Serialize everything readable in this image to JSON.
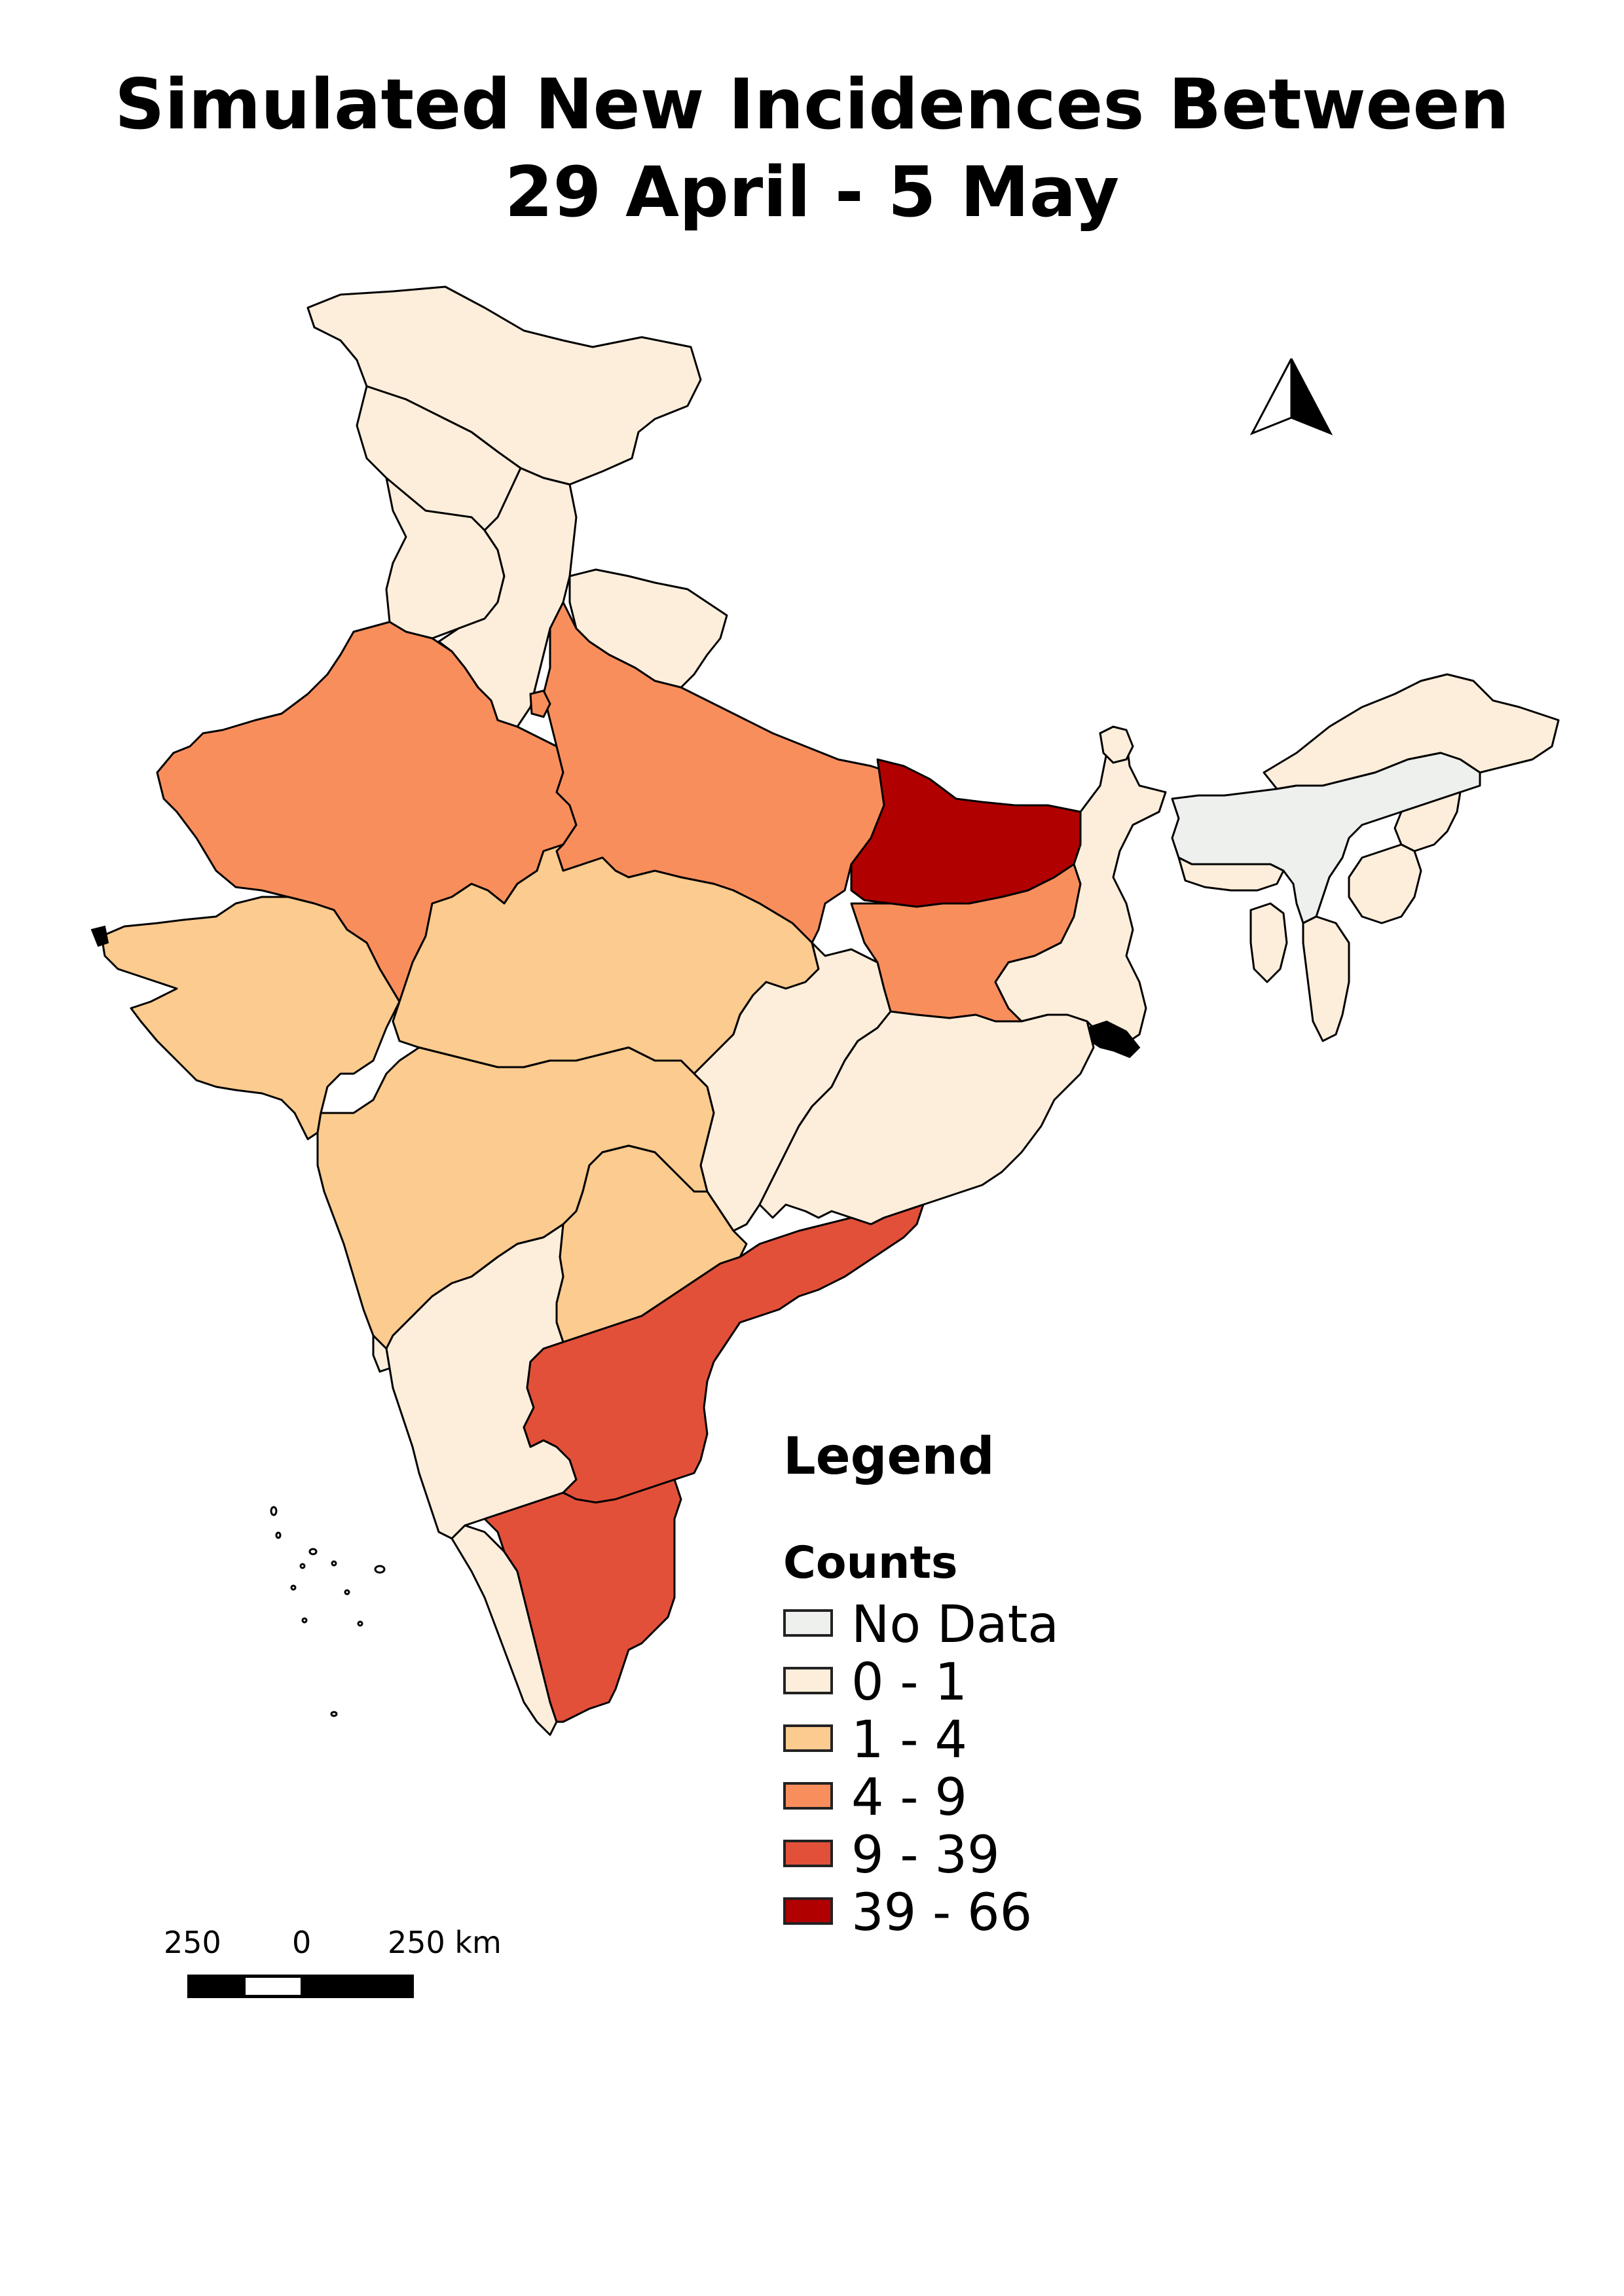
{
  "title": {
    "line1": "Simulated New Incidences Between",
    "line2": "29 April - 5 May"
  },
  "legend": {
    "heading": "Legend",
    "subheading": "Counts",
    "classes": [
      {
        "label": "No Data",
        "color": "#eef0ee"
      },
      {
        "label": " 0 - 1",
        "color": "#fdeedb"
      },
      {
        "label": " 1 - 4",
        "color": "#fbcb8f"
      },
      {
        "label": " 4 - 9",
        "color": "#f98e5d"
      },
      {
        "label": " 9 - 39",
        "color": "#e2503a"
      },
      {
        "label": "39 - 66",
        "color": "#b10000"
      }
    ]
  },
  "regions": [
    {
      "name": "Jammu and Kashmir",
      "class": "0 - 1",
      "color": "#fdeedb"
    },
    {
      "name": "Himachal Pradesh",
      "class": "0 - 1",
      "color": "#fdeedb"
    },
    {
      "name": "Punjab",
      "class": "0 - 1",
      "color": "#fdeedb"
    },
    {
      "name": "Haryana",
      "class": "0 - 1",
      "color": "#fdeedb"
    },
    {
      "name": "Uttarakhand",
      "class": "0 - 1",
      "color": "#fdeedb"
    },
    {
      "name": "Delhi",
      "class": "4 - 9",
      "color": "#f98e5d"
    },
    {
      "name": "Rajasthan",
      "class": "4 - 9",
      "color": "#f98e5d"
    },
    {
      "name": "Uttar Pradesh",
      "class": "4 - 9",
      "color": "#f98e5d"
    },
    {
      "name": "Bihar",
      "class": "39 - 66",
      "color": "#b10000"
    },
    {
      "name": "Gujarat",
      "class": "1 - 4",
      "color": "#fbcb8f"
    },
    {
      "name": "Madhya Pradesh",
      "class": "1 - 4",
      "color": "#fbcb8f"
    },
    {
      "name": "Jharkhand",
      "class": "4 - 9",
      "color": "#f98e5d"
    },
    {
      "name": "West Bengal",
      "class": "0 - 1",
      "color": "#fdeedb"
    },
    {
      "name": "Chhattisgarh",
      "class": "0 - 1",
      "color": "#fdeedb"
    },
    {
      "name": "Odisha",
      "class": "0 - 1",
      "color": "#fdeedb"
    },
    {
      "name": "Maharashtra",
      "class": "1 - 4",
      "color": "#fbcb8f"
    },
    {
      "name": "Telangana",
      "class": "1 - 4",
      "color": "#fbcb8f"
    },
    {
      "name": "Andhra Pradesh",
      "class": "9 - 39",
      "color": "#e2503a"
    },
    {
      "name": "Karnataka",
      "class": "0 - 1",
      "color": "#fdeedb"
    },
    {
      "name": "Goa",
      "class": "0 - 1",
      "color": "#fdeedb"
    },
    {
      "name": "Kerala",
      "class": "0 - 1",
      "color": "#fdeedb"
    },
    {
      "name": "Tamil Nadu",
      "class": "9 - 39",
      "color": "#e2503a"
    },
    {
      "name": "Sikkim",
      "class": "0 - 1",
      "color": "#fdeedb"
    },
    {
      "name": "Arunachal Pradesh",
      "class": "0 - 1",
      "color": "#fdeedb"
    },
    {
      "name": "Assam",
      "class": "No Data",
      "color": "#eef0ee"
    },
    {
      "name": "Meghalaya",
      "class": "0 - 1",
      "color": "#fdeedb"
    },
    {
      "name": "Nagaland",
      "class": "0 - 1",
      "color": "#fdeedb"
    },
    {
      "name": "Manipur",
      "class": "0 - 1",
      "color": "#fdeedb"
    },
    {
      "name": "Tripura",
      "class": "0 - 1",
      "color": "#fdeedb"
    },
    {
      "name": "Mizoram",
      "class": "0 - 1",
      "color": "#fdeedb"
    }
  ],
  "scale_bar": {
    "left_label": "250",
    "mid_label": "0",
    "right_label": "250 km"
  },
  "north_arrow": {
    "icon": "north-arrow-icon"
  }
}
